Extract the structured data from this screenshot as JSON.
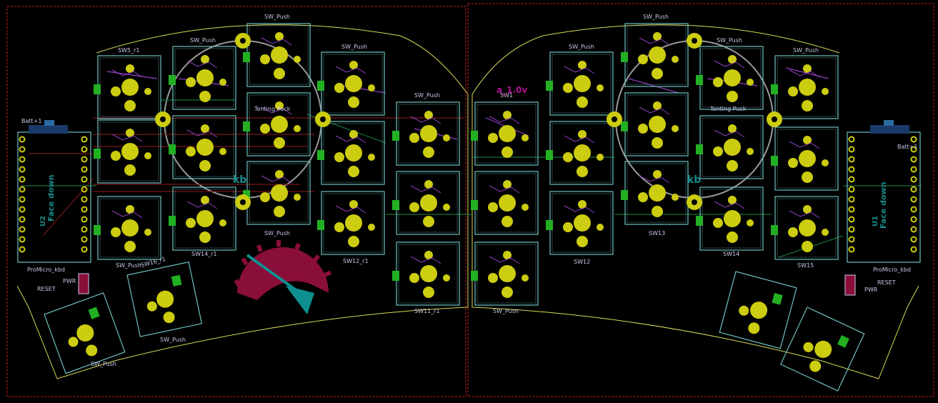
{
  "colors": {
    "background": "#000000",
    "board_edge": "#c81e1e",
    "outline": "#d8d858",
    "courtyard": "#6fc0c0",
    "silk": "#c8c8e8",
    "pad": "#cccc10",
    "pad_green": "#22b022",
    "track_red": "#7a1616",
    "track_green": "#16703a",
    "track_purple": "#9040c0",
    "puck": "#9a9a9a",
    "logo": "#8a0e3a",
    "teal": "#0e9090"
  },
  "labels": {
    "sw_push": "SW_Push",
    "sw5_r1": "SW5_r1",
    "sw14_r1": "SW14_r1",
    "sw12_r1": "SW12_r1",
    "sw11_r1": "SW11_r1",
    "sw16_r1": "SW16_r1",
    "sw12": "SW12",
    "sw13": "SW13",
    "sw14": "SW14",
    "sw15": "SW15",
    "sw1": "SW1",
    "tenting_puck": "Tenting Puck",
    "face_down_left": "Face down",
    "face_down_right": "Face down",
    "u1": "U1",
    "u2": "U2",
    "kb_left": "kb",
    "kb_right": "kb",
    "version": "a_1.0v",
    "promicro_left": "ProMicro_kbd",
    "promicro_right": "ProMicro_kbd",
    "batt_left": "Batt+1",
    "batt_right": "Batt+1",
    "reset_left": "RESET",
    "reset_right": "RESET",
    "pwr_left": "PWR",
    "pwr_right": "PWR"
  }
}
